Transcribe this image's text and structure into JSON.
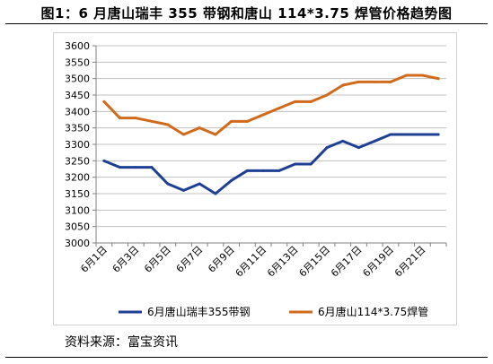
{
  "header": {
    "title": "图1：6 月唐山瑞丰 355 带钢和唐山 114*3.75 焊管价格趋势图"
  },
  "footer": {
    "source": "资料来源：富宝资讯"
  },
  "colors": {
    "strip_steel": "#1f3f93",
    "welded_pipe": "#d06a1c",
    "grid": "#c0c0c0",
    "axis": "#808080"
  },
  "chart_data": {
    "type": "line",
    "title": "",
    "xlabel": "",
    "ylabel": "",
    "ylim": [
      3000,
      3600
    ],
    "y_ticks": [
      "3000",
      "3050",
      "3100",
      "3150",
      "3200",
      "3250",
      "3300",
      "3350",
      "3400",
      "3450",
      "3500",
      "3550",
      "3600"
    ],
    "grid": "horizontal",
    "legend_position": "bottom",
    "categories": [
      "6月1日",
      "6月2日",
      "6月3日",
      "6月4日",
      "6月5日",
      "6月6日",
      "6月7日",
      "6月8日",
      "6月9日",
      "6月10日",
      "6月11日",
      "6月12日",
      "6月13日",
      "6月14日",
      "6月15日",
      "6月16日",
      "6月17日",
      "6月18日",
      "6月19日",
      "6月20日",
      "6月21日",
      "6月22日"
    ],
    "x_tick_labels": [
      "6月1日",
      "6月3日",
      "6月5日",
      "6月7日",
      "6月9日",
      "6月11日",
      "6月13日",
      "6月15日",
      "6月17日",
      "6月19日",
      "6月21日"
    ],
    "series": [
      {
        "name": "6月唐山瑞丰355带钢",
        "color": "#1f3f93",
        "values": [
          3250,
          3230,
          3230,
          3230,
          3180,
          3160,
          3180,
          3150,
          3190,
          3220,
          3220,
          3220,
          3240,
          3240,
          3290,
          3310,
          3290,
          3310,
          3330,
          3330,
          3330,
          3330
        ]
      },
      {
        "name": "6月唐山114*3.75焊管",
        "color": "#d06a1c",
        "values": [
          3430,
          3380,
          3380,
          3370,
          3360,
          3330,
          3350,
          3330,
          3370,
          3370,
          3390,
          3410,
          3430,
          3430,
          3450,
          3480,
          3490,
          3490,
          3490,
          3510,
          3510,
          3500
        ]
      }
    ]
  }
}
